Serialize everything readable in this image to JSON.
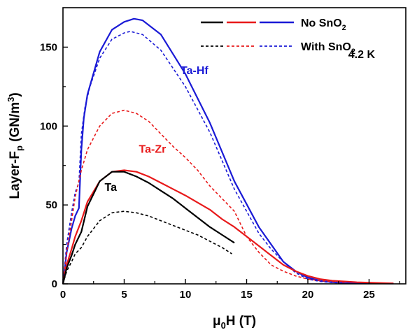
{
  "chart_data": {
    "type": "line",
    "xlabel": "μ0H (T)",
    "ylabel": "Layer-Fp (GN/m3)",
    "xlim": [
      0,
      28
    ],
    "ylim": [
      0,
      175
    ],
    "xticks": [
      0,
      5,
      10,
      15,
      20,
      25
    ],
    "yticks": [
      0,
      50,
      100,
      150
    ],
    "grid": false,
    "legend": {
      "placement": "top-right",
      "entries": [
        {
          "label": "No SnO2",
          "style": "solid",
          "colors": [
            "#000000",
            "#e8191a",
            "#1a1ad6"
          ]
        },
        {
          "label": "With SnO2",
          "style": "dashed",
          "colors": [
            "#000000",
            "#e8191a",
            "#1a1ad6"
          ]
        }
      ]
    },
    "annotations": [
      {
        "text": "4.2 K",
        "x": 23.3,
        "y": 143,
        "color": "#000000"
      },
      {
        "text": "Ta-Hf",
        "x": 9.6,
        "y": 133,
        "color": "#1a1ad6"
      },
      {
        "text": "Ta-Zr",
        "x": 6.2,
        "y": 83,
        "color": "#e8191a"
      },
      {
        "text": "Ta",
        "x": 3.4,
        "y": 59,
        "color": "#000000"
      }
    ],
    "series": [
      {
        "group": "Ta-Hf",
        "style": "solid",
        "color": "#1a1ad6",
        "x": [
          0,
          0.3,
          0.7,
          1.0,
          1.3,
          1.5,
          1.7,
          2,
          3,
          4,
          5,
          5.8,
          6.5,
          8,
          10,
          12,
          14,
          16,
          18,
          19,
          20,
          21,
          22,
          23,
          25,
          27
        ],
        "y": [
          0,
          20,
          35,
          43,
          48,
          85,
          105,
          120,
          147,
          161,
          166,
          168,
          167,
          158,
          133,
          102,
          65,
          36,
          14,
          8,
          4,
          2,
          1,
          0.5,
          0.3,
          0.2
        ]
      },
      {
        "group": "Ta-Hf",
        "style": "dashed",
        "color": "#1a1ad6",
        "x": [
          0,
          0.3,
          0.7,
          1.0,
          1.3,
          1.5,
          1.8,
          2.2,
          3,
          4,
          5,
          5.5,
          6.5,
          8,
          10,
          12,
          14,
          16,
          17,
          18,
          19,
          20,
          21,
          22,
          23,
          24
        ],
        "y": [
          0,
          25,
          45,
          58,
          64,
          95,
          112,
          125,
          143,
          155,
          159,
          160,
          158,
          148,
          125,
          96,
          60,
          32,
          22,
          14,
          7,
          3,
          1.5,
          0.8,
          0.4,
          0.2
        ]
      },
      {
        "group": "Ta-Zr",
        "style": "solid",
        "color": "#e8191a",
        "x": [
          0,
          0.3,
          0.7,
          1.0,
          1.5,
          2,
          3,
          4,
          5,
          6,
          7,
          8,
          10,
          12,
          13,
          14,
          15,
          16,
          17,
          18,
          19,
          20,
          21,
          22,
          24,
          27
        ],
        "y": [
          0,
          12,
          22,
          30,
          40,
          52,
          65,
          71,
          72,
          71,
          68,
          64,
          56,
          47,
          41,
          36,
          30,
          24,
          18,
          12,
          8,
          5,
          3,
          2,
          1,
          0.3
        ]
      },
      {
        "group": "Ta-Zr",
        "style": "dashed",
        "color": "#e8191a",
        "x": [
          0,
          0.3,
          0.7,
          1.0,
          1.5,
          2,
          3,
          4,
          5,
          6,
          7,
          8,
          9,
          10,
          11,
          12,
          13,
          14,
          15,
          16,
          17,
          18,
          19,
          20,
          21,
          22,
          23
        ],
        "y": [
          0,
          20,
          40,
          55,
          72,
          85,
          100,
          108,
          110,
          108,
          103,
          95,
          87,
          80,
          72,
          62,
          54,
          46,
          30,
          20,
          12,
          8,
          5,
          3,
          2,
          1.5,
          1
        ]
      },
      {
        "group": "Ta",
        "style": "solid",
        "color": "#000000",
        "x": [
          0,
          0.3,
          0.7,
          1.0,
          1.5,
          2,
          3,
          4,
          5,
          6,
          7,
          8,
          9,
          10,
          11,
          12,
          13,
          14
        ],
        "y": [
          0,
          10,
          18,
          25,
          33,
          49,
          65,
          71,
          71,
          68,
          64,
          59,
          54,
          48,
          42,
          36,
          31,
          26
        ]
      },
      {
        "group": "Ta",
        "style": "dashed",
        "color": "#000000",
        "x": [
          0,
          0.3,
          0.7,
          1.0,
          1.5,
          2,
          3,
          4,
          5,
          6,
          7,
          8,
          9,
          10,
          11,
          12,
          13,
          13.8
        ],
        "y": [
          0,
          8,
          14,
          19,
          23,
          30,
          40,
          45,
          46,
          45,
          43,
          40,
          37,
          34,
          31,
          27,
          23,
          19
        ]
      }
    ]
  }
}
